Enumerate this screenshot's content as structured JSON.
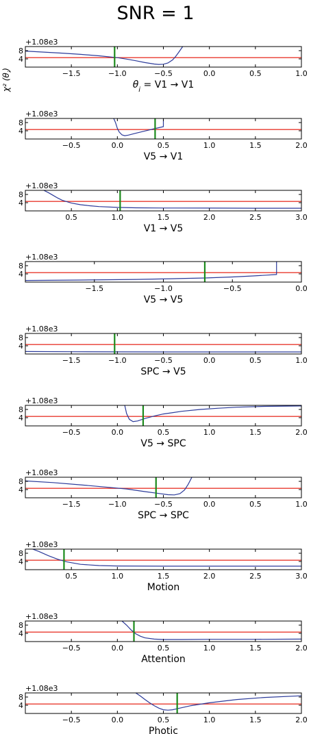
{
  "figure": {
    "title": "SNR = 1",
    "ylabel": "χ² (θ_i)",
    "offset_label": "+1.08e3"
  },
  "colors": {
    "curve": "#2b3a9a",
    "threshold": "#e8392e",
    "marker": "#1b8a1b",
    "axes": "#000000"
  },
  "chart_data": [
    {
      "type": "line",
      "xlabel": "θ_i = V1 → V1",
      "xlim": [
        -2.0,
        1.0
      ],
      "xticks": [
        -1.5,
        -1.0,
        -0.5,
        0.0,
        0.5,
        1.0
      ],
      "xtick_labels": [
        "−1.5",
        "−1.0",
        "−0.5",
        "0.0",
        "0.5",
        "1.0"
      ],
      "ylim": [
        0,
        10
      ],
      "yticks": [
        4,
        8
      ],
      "ytick_labels": [
        "4",
        "8"
      ],
      "y_offset": "+1.08e3",
      "threshold": 4.6,
      "marker_x": -1.03,
      "x": [
        -2.0,
        -1.8,
        -1.6,
        -1.4,
        -1.2,
        -1.0,
        -0.9,
        -0.8,
        -0.7,
        -0.6,
        -0.55,
        -0.5,
        -0.45,
        -0.4,
        -0.37,
        -0.34,
        -0.31,
        -0.29
      ],
      "y": [
        7.8,
        7.3,
        6.8,
        6.2,
        5.5,
        4.6,
        3.9,
        3.1,
        2.2,
        1.5,
        1.3,
        1.4,
        2.0,
        3.5,
        5.0,
        6.8,
        8.7,
        10.0
      ]
    },
    {
      "type": "line",
      "xlabel": "V5 → V1",
      "xlim": [
        -1.0,
        2.0
      ],
      "xticks": [
        -0.5,
        0.0,
        0.5,
        1.0,
        1.5,
        2.0
      ],
      "xtick_labels": [
        "−0.5",
        "0.0",
        "0.5",
        "1.0",
        "1.5",
        "2.0"
      ],
      "ylim": [
        0,
        10
      ],
      "yticks": [
        4,
        8
      ],
      "ytick_labels": [
        "4",
        "8"
      ],
      "y_offset": "+1.08e3",
      "threshold": 4.6,
      "marker_x": 0.41,
      "x": [
        -0.04,
        -0.02,
        0.0,
        0.02,
        0.05,
        0.08,
        0.12,
        0.2,
        0.3,
        0.4,
        0.45,
        0.5,
        0.5
      ],
      "y": [
        10.0,
        8.0,
        5.2,
        3.4,
        2.0,
        1.6,
        1.9,
        2.8,
        3.9,
        5.0,
        5.5,
        6.0,
        10.0
      ]
    },
    {
      "type": "line",
      "xlabel": "V1 → V5",
      "xlim": [
        0.0,
        3.0
      ],
      "xticks": [
        0.5,
        1.0,
        1.5,
        2.0,
        2.5,
        3.0
      ],
      "xtick_labels": [
        "0.5",
        "1.0",
        "1.5",
        "2.0",
        "2.5",
        "3.0"
      ],
      "ylim": [
        0,
        10
      ],
      "yticks": [
        4,
        8
      ],
      "ytick_labels": [
        "4",
        "8"
      ],
      "y_offset": "+1.08e3",
      "threshold": 4.6,
      "marker_x": 1.03,
      "x": [
        0.2,
        0.25,
        0.3,
        0.35,
        0.4,
        0.5,
        0.6,
        0.7,
        0.8,
        1.0,
        1.2,
        1.5,
        2.0,
        2.5,
        3.0
      ],
      "y": [
        10.0,
        8.9,
        7.6,
        6.3,
        5.2,
        3.8,
        3.0,
        2.5,
        2.1,
        1.7,
        1.5,
        1.4,
        1.35,
        1.3,
        1.3
      ]
    },
    {
      "type": "line",
      "xlabel": "V5 → V5",
      "xlim": [
        -2.0,
        0.0
      ],
      "xticks": [
        -1.5,
        -1.0,
        -0.5,
        0.0
      ],
      "xtick_labels": [
        "−1.5",
        "−1.0",
        "−0.5",
        "0.0"
      ],
      "ylim": [
        0,
        10
      ],
      "yticks": [
        4,
        8
      ],
      "ytick_labels": [
        "4",
        "8"
      ],
      "y_offset": "+1.08e3",
      "threshold": 4.6,
      "marker_x": -0.7,
      "x": [
        -2.0,
        -1.6,
        -1.2,
        -0.9,
        -0.7,
        -0.5,
        -0.35,
        -0.25,
        -0.18,
        -0.18
      ],
      "y": [
        0.8,
        1.0,
        1.3,
        1.7,
        2.0,
        2.5,
        3.0,
        3.4,
        3.7,
        10.0
      ]
    },
    {
      "type": "line",
      "xlabel": "SPC → V5",
      "xlim": [
        -2.0,
        1.0
      ],
      "xticks": [
        -1.5,
        -1.0,
        -0.5,
        0.0,
        0.5,
        1.0
      ],
      "xtick_labels": [
        "−1.5",
        "−1.0",
        "−0.5",
        "0.0",
        "0.5",
        "1.0"
      ],
      "ylim": [
        0,
        10
      ],
      "yticks": [
        4,
        8
      ],
      "ytick_labels": [
        "4",
        "8"
      ],
      "y_offset": "+1.08e3",
      "threshold": 4.6,
      "marker_x": -1.03,
      "x": [
        -2.0,
        -1.5,
        -1.0,
        -0.5,
        0.0,
        0.5,
        1.0
      ],
      "y": [
        1.2,
        1.1,
        1.05,
        1.0,
        1.0,
        1.0,
        1.0
      ]
    },
    {
      "type": "line",
      "xlabel": "V5 → SPC",
      "xlim": [
        -1.0,
        2.0
      ],
      "xticks": [
        -0.5,
        0.0,
        0.5,
        1.0,
        1.5,
        2.0
      ],
      "xtick_labels": [
        "−0.5",
        "0.0",
        "0.5",
        "1.0",
        "1.5",
        "2.0"
      ],
      "ylim": [
        0,
        10
      ],
      "yticks": [
        4,
        8
      ],
      "ytick_labels": [
        "4",
        "8"
      ],
      "y_offset": "+1.08e3",
      "threshold": 4.6,
      "marker_x": 0.28,
      "x": [
        0.08,
        0.1,
        0.13,
        0.17,
        0.22,
        0.3,
        0.4,
        0.5,
        0.7,
        0.9,
        1.1,
        1.3,
        1.6,
        2.0
      ],
      "y": [
        10.0,
        6.0,
        3.2,
        2.1,
        2.4,
        3.6,
        4.8,
        5.8,
        7.1,
        8.0,
        8.6,
        9.1,
        9.5,
        9.7
      ]
    },
    {
      "type": "line",
      "xlabel": "SPC → SPC",
      "xlim": [
        -2.0,
        1.0
      ],
      "xticks": [
        -1.5,
        -1.0,
        -0.5,
        0.0,
        0.5,
        1.0
      ],
      "xtick_labels": [
        "−1.5",
        "−1.0",
        "−0.5",
        "0.0",
        "0.5",
        "1.0"
      ],
      "ylim": [
        0,
        10
      ],
      "yticks": [
        4,
        8
      ],
      "ytick_labels": [
        "4",
        "8"
      ],
      "y_offset": "+1.08e3",
      "threshold": 4.6,
      "marker_x": -0.58,
      "x": [
        -2.0,
        -1.7,
        -1.4,
        -1.1,
        -0.9,
        -0.7,
        -0.55,
        -0.45,
        -0.38,
        -0.32,
        -0.27,
        -0.23,
        -0.19
      ],
      "y": [
        8.2,
        7.4,
        6.3,
        5.1,
        4.3,
        3.0,
        2.1,
        1.5,
        1.4,
        2.0,
        3.8,
        6.6,
        10.0
      ]
    },
    {
      "type": "line",
      "xlabel": "Motion",
      "xlim": [
        0.0,
        3.0
      ],
      "xticks": [
        0.5,
        1.0,
        1.5,
        2.0,
        2.5,
        3.0
      ],
      "xtick_labels": [
        "0.5",
        "1.0",
        "1.5",
        "2.0",
        "2.5",
        "3.0"
      ],
      "ylim": [
        0,
        10
      ],
      "yticks": [
        4,
        8
      ],
      "ytick_labels": [
        "4",
        "8"
      ],
      "y_offset": "+1.08e3",
      "threshold": 4.6,
      "marker_x": 0.42,
      "x": [
        0.08,
        0.15,
        0.25,
        0.35,
        0.45,
        0.6,
        0.8,
        1.0,
        1.5,
        2.0,
        3.0
      ],
      "y": [
        10.0,
        8.8,
        6.8,
        5.1,
        3.8,
        2.6,
        2.0,
        1.8,
        1.7,
        1.7,
        1.7
      ]
    },
    {
      "type": "line",
      "xlabel": "Attention",
      "xlim": [
        -1.0,
        2.0
      ],
      "xticks": [
        -0.5,
        0.0,
        0.5,
        1.0,
        1.5,
        2.0
      ],
      "xtick_labels": [
        "−0.5",
        "0.0",
        "0.5",
        "1.0",
        "1.5",
        "2.0"
      ],
      "ylim": [
        0,
        10
      ],
      "yticks": [
        4,
        8
      ],
      "ytick_labels": [
        "4",
        "8"
      ],
      "y_offset": "+1.08e3",
      "threshold": 4.6,
      "marker_x": 0.18,
      "x": [
        0.05,
        0.1,
        0.15,
        0.2,
        0.25,
        0.3,
        0.4,
        0.5,
        0.7,
        1.0,
        1.5,
        2.0
      ],
      "y": [
        10.0,
        8.0,
        5.6,
        3.8,
        2.6,
        1.8,
        1.2,
        1.0,
        1.0,
        1.1,
        1.1,
        1.2
      ]
    },
    {
      "type": "line",
      "xlabel": "Photic",
      "xlim": [
        -1.0,
        2.0
      ],
      "xticks": [
        -0.5,
        0.0,
        0.5,
        1.0,
        1.5,
        2.0
      ],
      "xtick_labels": [
        "−0.5",
        "0.0",
        "0.5",
        "1.0",
        "1.5",
        "2.0"
      ],
      "ylim": [
        0,
        10
      ],
      "yticks": [
        4,
        8
      ],
      "ytick_labels": [
        "4",
        "8"
      ],
      "y_offset": "+1.08e3",
      "threshold": 4.6,
      "marker_x": 0.65,
      "x": [
        0.2,
        0.25,
        0.3,
        0.35,
        0.4,
        0.45,
        0.5,
        0.55,
        0.6,
        0.7,
        0.8,
        1.0,
        1.3,
        1.6,
        2.0
      ],
      "y": [
        10.0,
        8.5,
        6.8,
        5.2,
        3.8,
        2.6,
        1.8,
        1.6,
        1.8,
        2.8,
        3.8,
        5.2,
        6.8,
        7.8,
        8.6
      ]
    }
  ]
}
